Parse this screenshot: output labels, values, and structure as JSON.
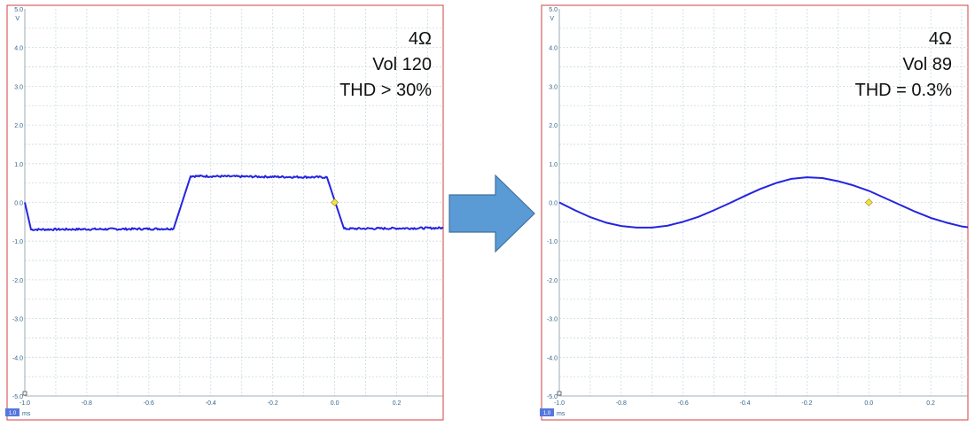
{
  "chart_data": [
    {
      "type": "line",
      "y_unit": "V",
      "x_unit": "ms",
      "channel_badge": "1.0",
      "xlim": [
        -1.0,
        0.35
      ],
      "ylim": [
        -5.0,
        5.0
      ],
      "x_ticks": [
        -1.0,
        -0.8,
        -0.6,
        -0.4,
        -0.2,
        0.0,
        0.2
      ],
      "x_tick_labels": [
        "-1.0",
        "-0.8",
        "-0.6",
        "-0.4",
        "-0.2",
        "0.0",
        "0.2"
      ],
      "y_ticks": [
        5.0,
        4.0,
        3.0,
        2.0,
        1.0,
        0.0,
        -1.0,
        -2.0,
        -3.0,
        -4.0,
        -5.0
      ],
      "y_tick_labels": [
        "5.0",
        "4.0",
        "3.0",
        "2.0",
        "1.0",
        "0.0",
        "-1.0",
        "-2.0",
        "-3.0",
        "-4.0",
        "-5.0"
      ],
      "grid": true,
      "annotations": [
        "4Ω",
        "Vol 120",
        "THD > 30%"
      ],
      "trigger_marker": {
        "x": 0.0,
        "y": 0.0
      },
      "series": [
        {
          "color": "#2424e0",
          "noisy": true,
          "x": [
            -1.0,
            -0.98,
            -0.52,
            -0.465,
            -0.025,
            0.03,
            0.35
          ],
          "y": [
            0.0,
            -0.7,
            -0.68,
            0.68,
            0.65,
            -0.68,
            -0.66
          ]
        }
      ]
    },
    {
      "type": "line",
      "y_unit": "V",
      "x_unit": "ms",
      "channel_badge": "1.0",
      "xlim": [
        -1.0,
        0.32
      ],
      "ylim": [
        -5.0,
        5.0
      ],
      "x_ticks": [
        -1.0,
        -0.8,
        -0.6,
        -0.4,
        -0.2,
        0.0,
        0.2
      ],
      "x_tick_labels": [
        "-1.0",
        "-0.8",
        "-0.6",
        "-0.4",
        "-0.2",
        "0.0",
        "0.2"
      ],
      "y_ticks": [
        5.0,
        4.0,
        3.0,
        2.0,
        1.0,
        0.0,
        -1.0,
        -2.0,
        -3.0,
        -4.0,
        -5.0
      ],
      "y_tick_labels": [
        "5.0",
        "4.0",
        "3.0",
        "2.0",
        "1.0",
        "0.0",
        "-1.0",
        "-2.0",
        "-3.0",
        "-4.0",
        "-5.0"
      ],
      "grid": true,
      "annotations": [
        "4Ω",
        "Vol 89",
        "THD = 0.3%"
      ],
      "trigger_marker": {
        "x": 0.0,
        "y": 0.0
      },
      "series": [
        {
          "color": "#2424e0",
          "noisy": false,
          "x": [
            -1.0,
            -0.95,
            -0.9,
            -0.85,
            -0.8,
            -0.75,
            -0.7,
            -0.65,
            -0.6,
            -0.55,
            -0.5,
            -0.45,
            -0.4,
            -0.35,
            -0.3,
            -0.25,
            -0.2,
            -0.15,
            -0.1,
            -0.05,
            0.0,
            0.05,
            0.1,
            0.15,
            0.2,
            0.25,
            0.3,
            0.32
          ],
          "y": [
            0.0,
            -0.2,
            -0.38,
            -0.52,
            -0.61,
            -0.65,
            -0.65,
            -0.6,
            -0.5,
            -0.37,
            -0.2,
            -0.02,
            0.17,
            0.35,
            0.5,
            0.61,
            0.65,
            0.63,
            0.55,
            0.44,
            0.3,
            0.12,
            -0.06,
            -0.24,
            -0.4,
            -0.52,
            -0.62,
            -0.64
          ]
        }
      ]
    }
  ]
}
